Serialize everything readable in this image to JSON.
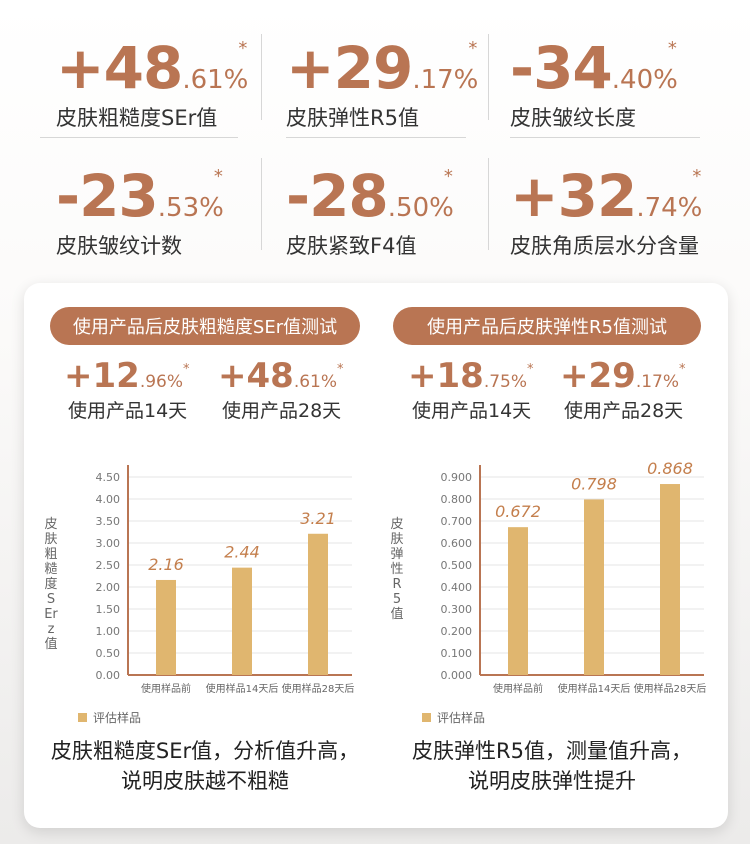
{
  "top_stats": [
    {
      "sign_int": "+48",
      "decimals": ".61%",
      "mark": "*",
      "label": "皮肤粗糙度SEr值"
    },
    {
      "sign_int": "+29",
      "decimals": ".17%",
      "mark": "*",
      "label": "皮肤弹性R5值"
    },
    {
      "sign_int": "-34",
      "decimals": ".40%",
      "mark": "*",
      "label": "皮肤皱纹长度"
    },
    {
      "sign_int": "-23",
      "decimals": ".53%",
      "mark": "*",
      "label": "皮肤皱纹计数"
    },
    {
      "sign_int": "-28",
      "decimals": ".50%",
      "mark": "*",
      "label": "皮肤紧致F4值"
    },
    {
      "sign_int": "+32",
      "decimals": ".74%",
      "mark": "*",
      "label": "皮肤角质层水分含量"
    }
  ],
  "panels": [
    {
      "title": "使用产品后皮肤粗糙度SEr值测试",
      "stats": [
        {
          "sign_int": "+12",
          "decimals": ".96%",
          "mark": "*",
          "label": "使用产品14天"
        },
        {
          "sign_int": "+48",
          "decimals": ".61%",
          "mark": "*",
          "label": "使用产品28天"
        }
      ],
      "conclusion_line1": "皮肤粗糙度SEr值，分析值升高，",
      "conclusion_line2": "说明皮肤越不粗糙"
    },
    {
      "title": "使用产品后皮肤弹性R5值测试",
      "stats": [
        {
          "sign_int": "+18",
          "decimals": ".75%",
          "mark": "*",
          "label": "使用产品14天"
        },
        {
          "sign_int": "+29",
          "decimals": ".17%",
          "mark": "*",
          "label": "使用产品28天"
        }
      ],
      "conclusion_line1": "皮肤弹性R5值，测量值升高，",
      "conclusion_line2": "说明皮肤弹性提升"
    }
  ],
  "chart_data": [
    {
      "type": "bar",
      "categories": [
        "使用样品前",
        "使用样品14天后",
        "使用样品28天后"
      ],
      "series": [
        {
          "name": "评估样品",
          "values": [
            2.16,
            2.44,
            3.21
          ]
        }
      ],
      "data_labels": [
        "2.16",
        "2.44",
        "3.21"
      ],
      "ylabel": "皮肤粗糙度SErz值",
      "ylim": [
        0,
        4.5
      ],
      "yticks": [
        "0.00",
        "0.50",
        "1.00",
        "1.50",
        "2.00",
        "2.50",
        "3.00",
        "3.50",
        "4.00",
        "4.50"
      ],
      "ytick_values": [
        0,
        0.5,
        1,
        1.5,
        2,
        2.5,
        3,
        3.5,
        4,
        4.5
      ],
      "grid": true,
      "legend": "bottom-left",
      "legend_label": "评估样品",
      "bar_color": "#e0b66f",
      "axis_color": "#b97553"
    },
    {
      "type": "bar",
      "categories": [
        "使用样品前",
        "使用样品14天后",
        "使用样品28天后"
      ],
      "series": [
        {
          "name": "评估样品",
          "values": [
            0.672,
            0.798,
            0.868
          ]
        }
      ],
      "data_labels": [
        "0.672",
        "0.798",
        "0.868"
      ],
      "ylabel": "皮肤弹性R5值",
      "ylim": [
        0,
        0.9
      ],
      "yticks": [
        "0.000",
        "0.100",
        "0.200",
        "0.300",
        "0.400",
        "0.500",
        "0.600",
        "0.700",
        "0.800",
        "0.900"
      ],
      "ytick_values": [
        0,
        0.1,
        0.2,
        0.3,
        0.4,
        0.5,
        0.6,
        0.7,
        0.8,
        0.9
      ],
      "grid": true,
      "legend": "bottom-left",
      "legend_label": "评估样品",
      "bar_color": "#e0b66f",
      "axis_color": "#b97553"
    }
  ],
  "colors": {
    "accent": "#b97553",
    "bar": "#e0b66f"
  }
}
